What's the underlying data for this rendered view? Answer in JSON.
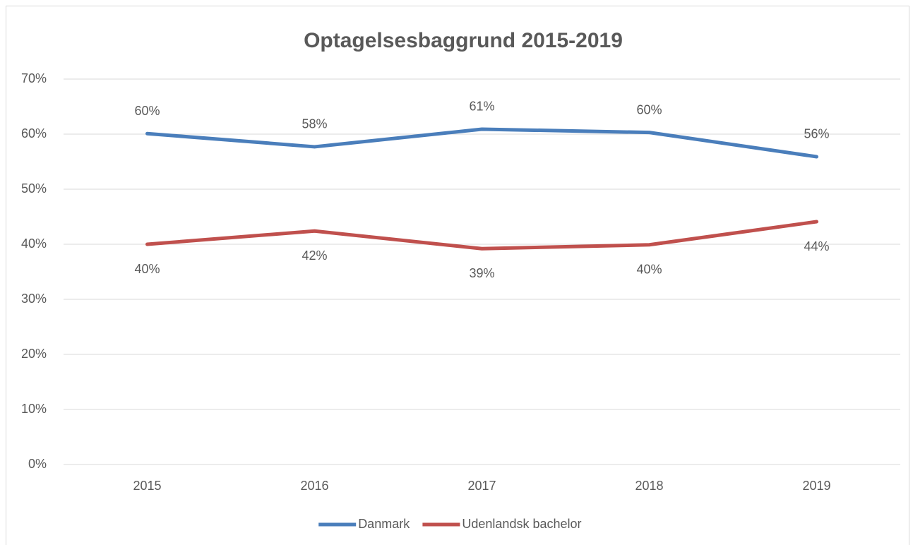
{
  "chart_data": {
    "type": "line",
    "title": "Optagelsesbaggrund 2015-2019",
    "categories": [
      "2015",
      "2016",
      "2017",
      "2018",
      "2019"
    ],
    "series": [
      {
        "name": "Danmark",
        "color": "#4a7ebb",
        "values": [
          60.1,
          57.7,
          60.9,
          60.3,
          55.9
        ],
        "value_labels": [
          "60%",
          "58%",
          "61%",
          "60%",
          "56%"
        ]
      },
      {
        "name": "Udenlandsk bachelor",
        "color": "#c0504d",
        "values": [
          40.0,
          42.4,
          39.2,
          39.9,
          44.1
        ],
        "value_labels": [
          "40%",
          "42%",
          "39%",
          "40%",
          "44%"
        ]
      }
    ],
    "ylim": [
      0,
      70
    ],
    "yticks": [
      {
        "value": 0,
        "label": "0%"
      },
      {
        "value": 10,
        "label": "10%"
      },
      {
        "value": 20,
        "label": "20%"
      },
      {
        "value": 30,
        "label": "30%"
      },
      {
        "value": 40,
        "label": "40%"
      },
      {
        "value": 50,
        "label": "50%"
      },
      {
        "value": 60,
        "label": "60%"
      },
      {
        "value": 70,
        "label": "70%"
      }
    ],
    "grid": true,
    "legend": "bottom"
  }
}
